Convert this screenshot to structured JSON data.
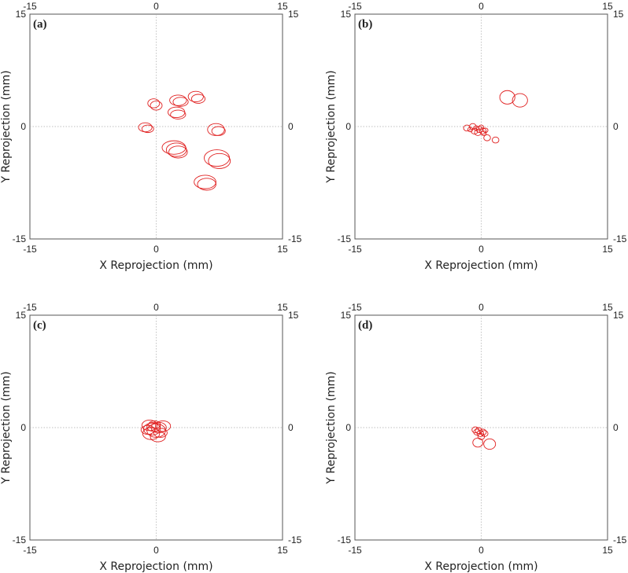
{
  "chart_data": [
    {
      "type": "scatter",
      "panel_label": "(a)",
      "xlabel": "X Reprojection (mm)",
      "ylabel": "Y Reprojection (mm)",
      "xlim": [
        -15,
        15
      ],
      "ylim": [
        -15,
        15
      ],
      "x_ticks": [
        "-15",
        "0",
        "15"
      ],
      "y_ticks": [
        "-15",
        "0",
        "15"
      ],
      "zero_lines": true,
      "marker": "ellipse",
      "color": "#e02020",
      "ellipses": [
        {
          "x": -0.3,
          "y": 3.1,
          "rx": 0.7,
          "ry": 0.6
        },
        {
          "x": 0.0,
          "y": 2.8,
          "rx": 0.7,
          "ry": 0.6
        },
        {
          "x": 2.6,
          "y": 3.5,
          "rx": 1.0,
          "ry": 0.7
        },
        {
          "x": 2.9,
          "y": 3.3,
          "rx": 0.9,
          "ry": 0.6
        },
        {
          "x": 4.7,
          "y": 4.0,
          "rx": 0.9,
          "ry": 0.7
        },
        {
          "x": 5.0,
          "y": 3.7,
          "rx": 0.8,
          "ry": 0.6
        },
        {
          "x": 2.4,
          "y": 1.9,
          "rx": 1.0,
          "ry": 0.7
        },
        {
          "x": 2.6,
          "y": 1.6,
          "rx": 0.9,
          "ry": 0.6
        },
        {
          "x": -1.3,
          "y": -0.1,
          "rx": 0.8,
          "ry": 0.6
        },
        {
          "x": -1.0,
          "y": -0.3,
          "rx": 0.7,
          "ry": 0.5
        },
        {
          "x": 7.1,
          "y": -0.4,
          "rx": 1.0,
          "ry": 0.8
        },
        {
          "x": 7.4,
          "y": -0.6,
          "rx": 0.8,
          "ry": 0.6
        },
        {
          "x": 2.1,
          "y": -2.8,
          "rx": 1.4,
          "ry": 0.9
        },
        {
          "x": 2.4,
          "y": -3.1,
          "rx": 1.2,
          "ry": 0.9
        },
        {
          "x": 2.6,
          "y": -3.4,
          "rx": 1.1,
          "ry": 0.8
        },
        {
          "x": 7.2,
          "y": -4.2,
          "rx": 1.5,
          "ry": 1.1
        },
        {
          "x": 7.5,
          "y": -4.6,
          "rx": 1.3,
          "ry": 1.0
        },
        {
          "x": 5.8,
          "y": -7.4,
          "rx": 1.3,
          "ry": 0.9
        },
        {
          "x": 6.0,
          "y": -7.7,
          "rx": 1.1,
          "ry": 0.8
        }
      ]
    },
    {
      "type": "scatter",
      "panel_label": "(b)",
      "xlabel": "X Reprojection (mm)",
      "ylabel": "Y Reprojection (mm)",
      "xlim": [
        -15,
        15
      ],
      "ylim": [
        -15,
        15
      ],
      "x_ticks": [
        "-15",
        "0",
        "15"
      ],
      "y_ticks": [
        "-15",
        "0",
        "15"
      ],
      "zero_lines": true,
      "marker": "ellipse",
      "color": "#e02020",
      "ellipses": [
        {
          "x": 3.1,
          "y": 3.9,
          "rx": 0.9,
          "ry": 0.9
        },
        {
          "x": 4.6,
          "y": 3.5,
          "rx": 0.9,
          "ry": 0.9
        },
        {
          "x": -1.7,
          "y": -0.2,
          "rx": 0.4,
          "ry": 0.4
        },
        {
          "x": -1.3,
          "y": -0.4,
          "rx": 0.3,
          "ry": 0.3
        },
        {
          "x": -1.0,
          "y": 0.0,
          "rx": 0.4,
          "ry": 0.4
        },
        {
          "x": -0.8,
          "y": -0.6,
          "rx": 0.4,
          "ry": 0.4
        },
        {
          "x": -0.6,
          "y": -0.2,
          "rx": 0.3,
          "ry": 0.3
        },
        {
          "x": -0.4,
          "y": -0.8,
          "rx": 0.4,
          "ry": 0.4
        },
        {
          "x": -0.2,
          "y": -0.4,
          "rx": 0.4,
          "ry": 0.4
        },
        {
          "x": 0.0,
          "y": -0.1,
          "rx": 0.3,
          "ry": 0.3
        },
        {
          "x": 0.2,
          "y": -0.6,
          "rx": 0.4,
          "ry": 0.4
        },
        {
          "x": 0.5,
          "y": -0.5,
          "rx": 0.3,
          "ry": 0.3
        },
        {
          "x": 0.3,
          "y": -0.9,
          "rx": 0.3,
          "ry": 0.3
        },
        {
          "x": 0.7,
          "y": -1.5,
          "rx": 0.4,
          "ry": 0.4
        },
        {
          "x": 1.7,
          "y": -1.8,
          "rx": 0.4,
          "ry": 0.4
        }
      ]
    },
    {
      "type": "scatter",
      "panel_label": "(c)",
      "xlabel": "X Reprojection (mm)",
      "ylabel": "Y Reprojection (mm)",
      "xlim": [
        -15,
        15
      ],
      "ylim": [
        -15,
        15
      ],
      "x_ticks": [
        "-15",
        "0",
        "15"
      ],
      "y_ticks": [
        "-15",
        "0",
        "15"
      ],
      "zero_lines": true,
      "marker": "ellipse",
      "color": "#e02020",
      "ellipses": [
        {
          "x": -0.8,
          "y": 0.3,
          "rx": 0.9,
          "ry": 0.7
        },
        {
          "x": -0.5,
          "y": -0.2,
          "rx": 1.0,
          "ry": 0.8
        },
        {
          "x": -0.3,
          "y": 0.1,
          "rx": 0.8,
          "ry": 0.6
        },
        {
          "x": 0.0,
          "y": -0.4,
          "rx": 1.1,
          "ry": 0.9
        },
        {
          "x": 0.3,
          "y": 0.0,
          "rx": 0.9,
          "ry": 0.7
        },
        {
          "x": 0.8,
          "y": 0.2,
          "rx": 0.9,
          "ry": 0.7
        },
        {
          "x": -0.6,
          "y": -0.8,
          "rx": 1.0,
          "ry": 0.8
        },
        {
          "x": 0.2,
          "y": -1.2,
          "rx": 0.9,
          "ry": 0.7
        },
        {
          "x": -1.0,
          "y": -0.3,
          "rx": 0.8,
          "ry": 0.6
        },
        {
          "x": 0.5,
          "y": -0.7,
          "rx": 0.8,
          "ry": 0.6
        },
        {
          "x": -0.2,
          "y": 0.4,
          "rx": 0.7,
          "ry": 0.5
        }
      ]
    },
    {
      "type": "scatter",
      "panel_label": "(d)",
      "xlabel": "X Reprojection (mm)",
      "ylabel": "Y Reprojection (mm)",
      "xlim": [
        -15,
        15
      ],
      "ylim": [
        -15,
        15
      ],
      "x_ticks": [
        "-15",
        "0",
        "15"
      ],
      "y_ticks": [
        "-15",
        "0",
        "15"
      ],
      "zero_lines": true,
      "marker": "ellipse",
      "color": "#e02020",
      "ellipses": [
        {
          "x": -0.7,
          "y": -0.3,
          "rx": 0.4,
          "ry": 0.4
        },
        {
          "x": -0.5,
          "y": -0.6,
          "rx": 0.4,
          "ry": 0.4
        },
        {
          "x": -0.3,
          "y": -0.4,
          "rx": 0.4,
          "ry": 0.4
        },
        {
          "x": -0.1,
          "y": -0.8,
          "rx": 0.4,
          "ry": 0.4
        },
        {
          "x": 0.2,
          "y": -0.6,
          "rx": 0.4,
          "ry": 0.4
        },
        {
          "x": 0.4,
          "y": -0.8,
          "rx": 0.4,
          "ry": 0.4
        },
        {
          "x": 0.0,
          "y": -1.2,
          "rx": 0.4,
          "ry": 0.4
        },
        {
          "x": -0.4,
          "y": -2.0,
          "rx": 0.6,
          "ry": 0.6
        },
        {
          "x": 1.0,
          "y": -2.2,
          "rx": 0.7,
          "ry": 0.7
        }
      ]
    }
  ]
}
